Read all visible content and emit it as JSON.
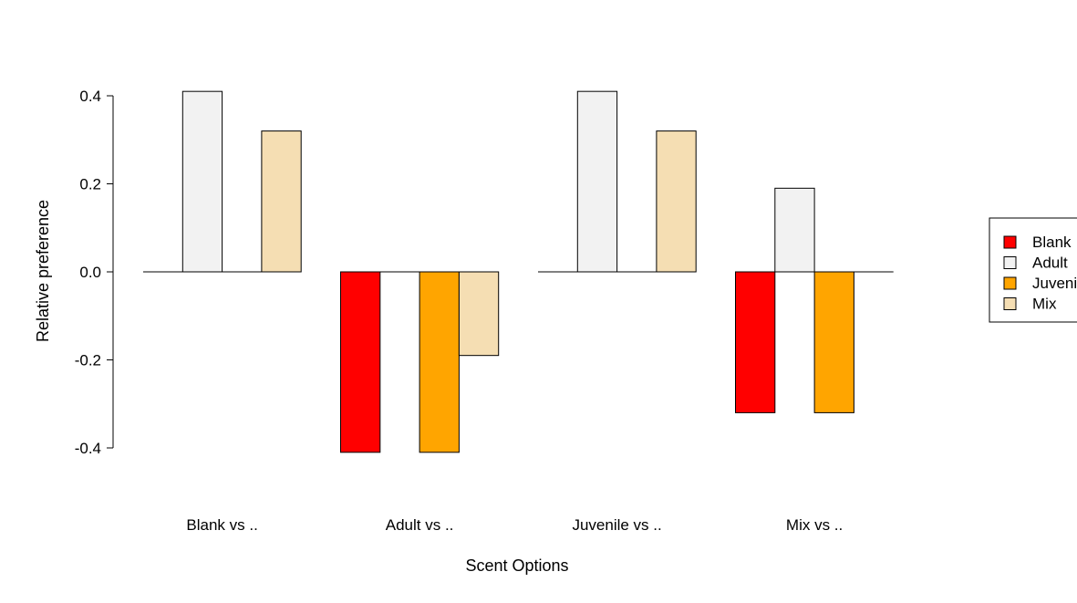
{
  "chart_data": {
    "type": "bar",
    "xlabel": "Scent Options",
    "ylabel": "Relative preference",
    "ylim": [
      -0.4,
      0.4
    ],
    "yticks": [
      "-0.4",
      "-0.2",
      "0.0",
      "0.2",
      "0.4"
    ],
    "categories": [
      "Blank vs ..",
      "Adult vs ..",
      "Juvenile vs ..",
      "Mix vs .."
    ],
    "series": [
      {
        "name": "Blank",
        "color": "#ff0000",
        "values": [
          0,
          -0.41,
          0,
          -0.32
        ]
      },
      {
        "name": "Adult",
        "color": "#f2f2f2",
        "values": [
          0.41,
          0,
          0.41,
          0.19
        ]
      },
      {
        "name": "Juvenile",
        "color": "#ffa500",
        "values": [
          0,
          -0.41,
          0,
          -0.32
        ]
      },
      {
        "name": "Mix",
        "color": "#f5deb3",
        "values": [
          0.32,
          -0.19,
          0.32,
          0
        ]
      }
    ],
    "grid": false,
    "legend_position": "right"
  }
}
